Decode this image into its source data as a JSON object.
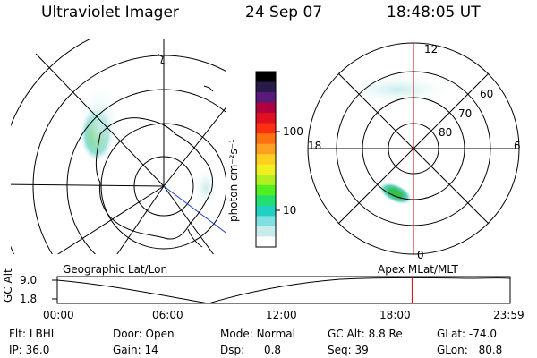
{
  "header": {
    "instrument": "Ultraviolet Imager",
    "date": "24 Sep 07",
    "time": "18:48:05 UT"
  },
  "colorbar": {
    "unit": "photon cm⁻²s⁻¹",
    "ticks": [
      "100",
      "10"
    ],
    "colors": [
      "#000000",
      "#2a1a4a",
      "#5a1a7a",
      "#b00040",
      "#e01020",
      "#ff3010",
      "#ff7010",
      "#ffa020",
      "#ffd020",
      "#f0f020",
      "#b0f020",
      "#50f020",
      "#20e070",
      "#20d0c0",
      "#80e0e0",
      "#c8ecec",
      "#ffffff"
    ]
  },
  "geo_plot": {
    "label": "Geographic Lat/Lon"
  },
  "mag_plot": {
    "label": "Apex MLat/MLT",
    "mlt_labels": {
      "top": "12",
      "left": "18",
      "right": "6",
      "bottom": "0"
    },
    "lat_labels": [
      "60",
      "70",
      "80"
    ]
  },
  "altitude_plot": {
    "axis_label": "GC Alt",
    "y_ticks": [
      "9.0",
      "1.8"
    ],
    "x_ticks": [
      "00:00",
      "06:00",
      "12:00",
      "18:00",
      "23:59"
    ],
    "current_time_fraction": 0.7834,
    "marker_color": "#cc0000"
  },
  "info": {
    "filter": {
      "label": "Flt:",
      "value": "LBHL"
    },
    "ip": {
      "label": "IP:",
      "value": "36.0"
    },
    "door": {
      "label": "Door:",
      "value": "Open"
    },
    "gain": {
      "label": "Gain:",
      "value": "14"
    },
    "mode": {
      "label": "Mode:",
      "value": "Normal"
    },
    "dsp": {
      "label": "Dsp:",
      "value": "0.8"
    },
    "gc_alt": {
      "label": "GC Alt:",
      "value": "8.8 Re"
    },
    "seq": {
      "label": "Seq:",
      "value": "39"
    },
    "glat": {
      "label": "GLat:",
      "value": "-74.0"
    },
    "glon": {
      "label": "GLon:",
      "value": "80.8"
    }
  }
}
